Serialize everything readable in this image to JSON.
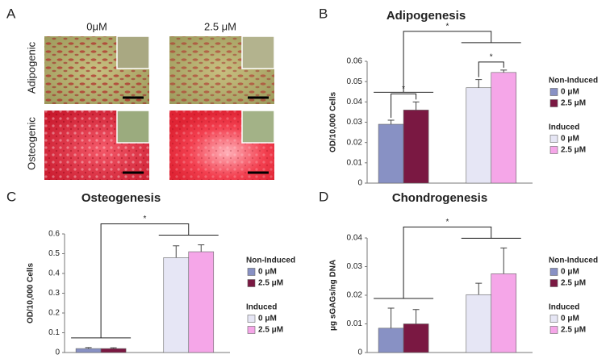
{
  "image_panel": {
    "label": "A",
    "columns": [
      "0μM",
      "2.5 μM"
    ],
    "rows": [
      "Adipogenic",
      "Osteogenic"
    ]
  },
  "chart_data": [
    {
      "type": "bar",
      "panel": "B",
      "title": "Adipogenesis",
      "y_label": "OD/10,000 Cells",
      "ylim": [
        0,
        0.06
      ],
      "yticks": [
        0,
        0.01,
        0.02,
        0.03,
        0.04,
        0.05,
        0.06
      ],
      "groups": [
        {
          "name": "Non-Induced",
          "series": [
            {
              "name": "0 μM",
              "color": "#8891c4",
              "values": [
                0.029
              ],
              "errors": [
                0.002
              ]
            },
            {
              "name": "2.5 μM",
              "color": "#7a1842",
              "values": [
                0.036
              ],
              "errors": [
                0.004
              ]
            }
          ]
        },
        {
          "name": "Induced",
          "series": [
            {
              "name": "0 μM",
              "color": "#e6e6f5",
              "values": [
                0.047
              ],
              "errors": [
                0.004
              ]
            },
            {
              "name": "2.5 μM",
              "color": "#f5a6e8",
              "values": [
                0.0545
              ],
              "errors": [
                0.0012
              ]
            }
          ]
        }
      ],
      "annotations": [
        "*",
        "*",
        "*"
      ]
    },
    {
      "type": "bar",
      "panel": "C",
      "title": "Osteogenesis",
      "y_label": "OD/10,000 Cells",
      "ylim": [
        0,
        0.6
      ],
      "yticks": [
        0,
        0.1,
        0.2,
        0.3,
        0.4,
        0.5,
        0.6
      ],
      "groups": [
        {
          "name": "Non-Induced",
          "series": [
            {
              "name": "0 μM",
              "color": "#8891c4",
              "values": [
                0.02
              ],
              "errors": [
                0.005
              ]
            },
            {
              "name": "2.5 μM",
              "color": "#7a1842",
              "values": [
                0.02
              ],
              "errors": [
                0.004
              ]
            }
          ]
        },
        {
          "name": "Induced",
          "series": [
            {
              "name": "0 μM",
              "color": "#e6e6f5",
              "values": [
                0.48
              ],
              "errors": [
                0.06
              ]
            },
            {
              "name": "2.5 μM",
              "color": "#f5a6e8",
              "values": [
                0.51
              ],
              "errors": [
                0.035
              ]
            }
          ]
        }
      ],
      "annotations": [
        "*"
      ]
    },
    {
      "type": "bar",
      "panel": "D",
      "title": "Chondrogenesis",
      "y_label": "μg sGAGs/ng DNA",
      "ylim": [
        0,
        0.04
      ],
      "yticks": [
        0,
        0.01,
        0.02,
        0.03,
        0.04
      ],
      "groups": [
        {
          "name": "Non-Induced",
          "series": [
            {
              "name": "0 μM",
              "color": "#8891c4",
              "values": [
                0.0085
              ],
              "errors": [
                0.007
              ]
            },
            {
              "name": "2.5 μM",
              "color": "#7a1842",
              "values": [
                0.01
              ],
              "errors": [
                0.005
              ]
            }
          ]
        },
        {
          "name": "Induced",
          "series": [
            {
              "name": "0 μM",
              "color": "#e6e6f5",
              "values": [
                0.0202
              ],
              "errors": [
                0.004
              ]
            },
            {
              "name": "2.5 μM",
              "color": "#f5a6e8",
              "values": [
                0.0275
              ],
              "errors": [
                0.009
              ]
            }
          ]
        }
      ],
      "annotations": [
        "*"
      ]
    }
  ]
}
